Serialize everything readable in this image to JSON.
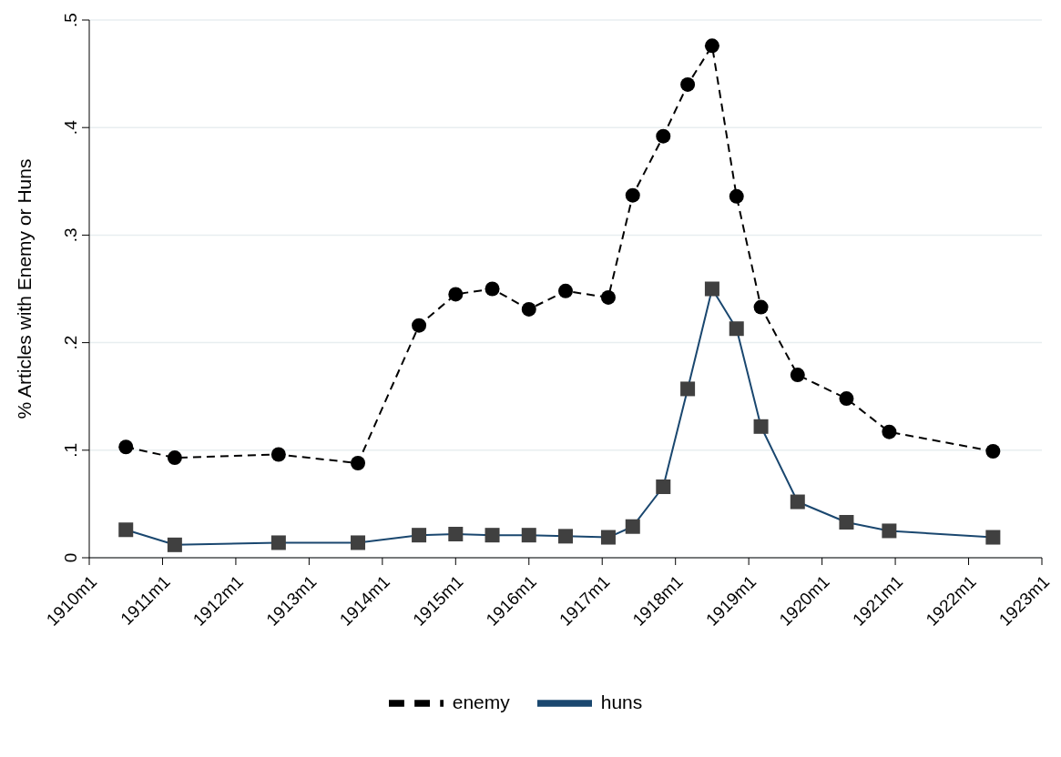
{
  "chart_data": {
    "type": "line",
    "ylabel": "% Articles with Enemy or Huns",
    "x": [
      "1910-07",
      "1911-03",
      "1912-08",
      "1913-09",
      "1914-07",
      "1915-01",
      "1915-07",
      "1916-01",
      "1916-07",
      "1917-02",
      "1917-06",
      "1917-11",
      "1918-03",
      "1918-07",
      "1918-11",
      "1919-03",
      "1919-09",
      "1920-05",
      "1920-12",
      "1922-05"
    ],
    "series": [
      {
        "name": "huns",
        "color": "#1a476f",
        "marker": "square",
        "line_style": "solid",
        "values": [
          0.026,
          0.012,
          0.014,
          0.014,
          0.021,
          0.022,
          0.021,
          0.021,
          0.02,
          0.019,
          0.029,
          0.066,
          0.157,
          0.25,
          0.213,
          0.122,
          0.052,
          0.033,
          0.025,
          0.019
        ]
      },
      {
        "name": "enemy",
        "color": "#000000",
        "marker": "circle",
        "line_style": "dashed",
        "values": [
          0.103,
          0.093,
          0.096,
          0.088,
          0.216,
          0.245,
          0.25,
          0.231,
          0.248,
          0.242,
          0.337,
          0.392,
          0.44,
          0.476,
          0.336,
          0.233,
          0.17,
          0.148,
          0.117,
          0.099
        ]
      }
    ],
    "xlim": [
      "1910-01",
      "1923-01"
    ],
    "xticks": [
      {
        "value": "1910-01",
        "label": "1910m1"
      },
      {
        "value": "1911-01",
        "label": "1911m1"
      },
      {
        "value": "1912-01",
        "label": "1912m1"
      },
      {
        "value": "1913-01",
        "label": "1913m1"
      },
      {
        "value": "1914-01",
        "label": "1914m1"
      },
      {
        "value": "1915-01",
        "label": "1915m1"
      },
      {
        "value": "1916-01",
        "label": "1916m1"
      },
      {
        "value": "1917-01",
        "label": "1917m1"
      },
      {
        "value": "1918-01",
        "label": "1918m1"
      },
      {
        "value": "1919-01",
        "label": "1919m1"
      },
      {
        "value": "1920-01",
        "label": "1920m1"
      },
      {
        "value": "1921-01",
        "label": "1921m1"
      },
      {
        "value": "1922-01",
        "label": "1922m1"
      },
      {
        "value": "1923-01",
        "label": "1923m1"
      }
    ],
    "ylim": [
      0,
      0.5
    ],
    "yticks": [
      {
        "value": 0,
        "label": "0"
      },
      {
        "value": 0.1,
        "label": ".1"
      },
      {
        "value": 0.2,
        "label": ".2"
      },
      {
        "value": 0.3,
        "label": ".3"
      },
      {
        "value": 0.4,
        "label": ".4"
      },
      {
        "value": 0.5,
        "label": ".5"
      }
    ],
    "grid": "y",
    "legend": "bottom"
  }
}
